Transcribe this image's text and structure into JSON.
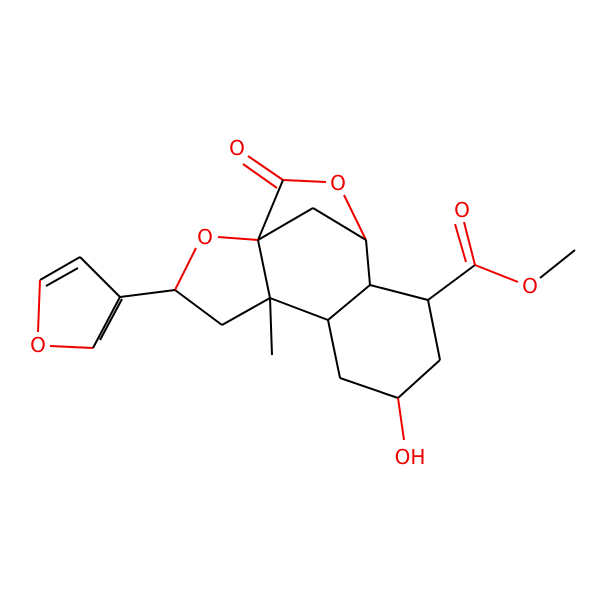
{
  "nodes": [
    {
      "label": "O"
    },
    {
      "label": "O"
    },
    {
      "label": "O"
    },
    {
      "label": "O"
    },
    {
      "label": "O"
    },
    {
      "label": "O"
    },
    {
      "label": "OH"
    }
  ]
}
